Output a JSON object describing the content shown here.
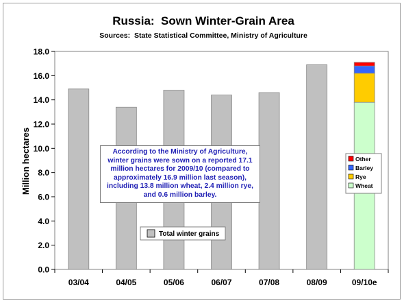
{
  "chart_data": {
    "type": "bar",
    "title": "Russia:  Sown Winter-Grain Area",
    "subtitle": "Sources:  State Statistical Committee, Ministry of Agriculture",
    "ylabel": "Million hectares",
    "xlabel": "",
    "ylim": [
      0,
      18
    ],
    "yticks": [
      "0.0",
      "2.0",
      "4.0",
      "6.0",
      "8.0",
      "10.0",
      "12.0",
      "14.0",
      "16.0",
      "18.0"
    ],
    "grid": false,
    "categories": [
      "03/04",
      "04/05",
      "05/06",
      "06/07",
      "07/08",
      "08/09",
      "09/10e"
    ],
    "series": [
      {
        "name": "Total winter grains",
        "color": "#c0c0c0",
        "values": [
          14.9,
          13.4,
          14.8,
          14.4,
          14.6,
          16.9,
          null
        ]
      },
      {
        "name": "Wheat",
        "color": "#ccffcc",
        "values": [
          null,
          null,
          null,
          null,
          null,
          null,
          13.8
        ]
      },
      {
        "name": "Rye",
        "color": "#ffcc00",
        "values": [
          null,
          null,
          null,
          null,
          null,
          null,
          2.4
        ]
      },
      {
        "name": "Barley",
        "color": "#3366ff",
        "values": [
          null,
          null,
          null,
          null,
          null,
          null,
          0.6
        ]
      },
      {
        "name": "Other",
        "color": "#ff0000",
        "values": [
          null,
          null,
          null,
          null,
          null,
          null,
          0.3
        ]
      }
    ],
    "legends": [
      {
        "placement": "bottom-center",
        "entries": [
          "Total winter grains"
        ]
      },
      {
        "placement": "right",
        "entries": [
          "Other",
          "Barley",
          "Rye",
          "Wheat"
        ]
      }
    ],
    "annotation": "According to the Ministry of Agriculture, winter grains were sown on a reported 17.1 million hectares for 2009/10 (compared to approximately 16.9 million last season), including 13.8 million wheat, 2.4 million rye, and 0.6 million barley."
  }
}
